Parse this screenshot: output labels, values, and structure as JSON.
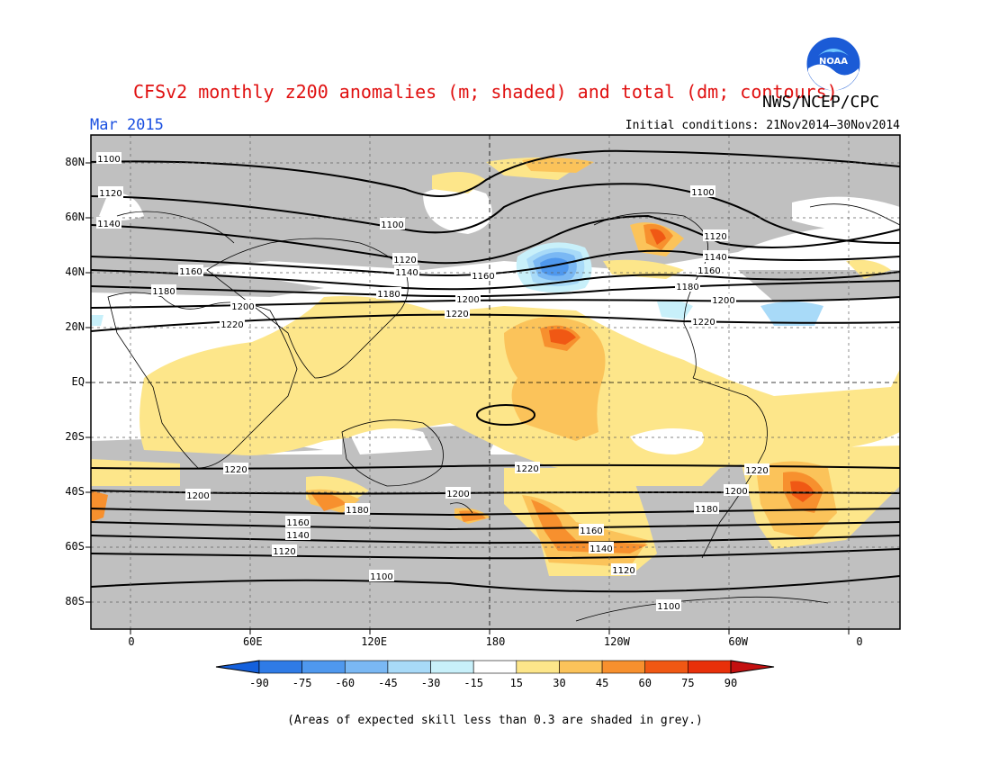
{
  "title": "CFSv2 monthly z200 anomalies (m; shaded) and total (dm; contours)",
  "agency": "NWS/NCEP/CPC",
  "logo_text": "NOAA",
  "valid_month": "Mar 2015",
  "initial_conditions": "Initial conditions: 21Nov2014–30Nov2014",
  "footnote": "(Areas of expected skill less than 0.3 are shaded in grey.)",
  "map": {
    "lat_labels": [
      "80N",
      "60N",
      "40N",
      "20N",
      "EQ",
      "20S",
      "40S",
      "60S",
      "80S"
    ],
    "lat_values": [
      80,
      60,
      40,
      20,
      0,
      -20,
      -40,
      -60,
      -80
    ],
    "lon_labels": [
      "0",
      "60E",
      "120E",
      "180",
      "120W",
      "60W",
      "0"
    ],
    "lon_values": [
      0,
      60,
      120,
      180,
      240,
      300,
      360
    ],
    "lon_range": [
      -20,
      380
    ],
    "lat_range": [
      -90,
      90
    ],
    "contour_labels": [
      "1100",
      "1120",
      "1140",
      "1160",
      "1180",
      "1200",
      "1220"
    ],
    "contour_unit": "dm",
    "anomaly_unit": "m",
    "grey_meaning": "skill < 0.3"
  },
  "colorbar": {
    "labels": [
      "-90",
      "-75",
      "-60",
      "-45",
      "-30",
      "-15",
      "15",
      "30",
      "45",
      "60",
      "75",
      "90"
    ],
    "colors": [
      "#1460dc",
      "#2f7be6",
      "#4f98ee",
      "#7ab8f4",
      "#a8daf8",
      "#c8f0fa",
      "#ffffff",
      "#fde68a",
      "#fbc35a",
      "#f7902e",
      "#f05814",
      "#e8300a",
      "#c41010"
    ]
  }
}
